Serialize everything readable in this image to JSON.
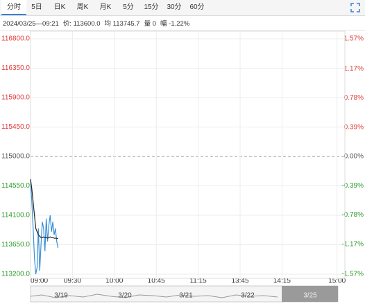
{
  "tabs": [
    "分时",
    "5日",
    "日K",
    "周K",
    "月K",
    "5分",
    "15分",
    "30分",
    "60分"
  ],
  "info": [
    "2024/03/25—09:21",
    "价: 113600.0",
    "均 113745.7",
    "量 0",
    "幅 -1.22%"
  ],
  "chart_data": {
    "type": "line",
    "x": [
      0,
      1,
      2,
      3,
      4,
      5,
      6,
      7,
      8,
      9,
      10,
      11,
      12,
      13,
      14,
      15,
      16,
      17,
      18,
      19,
      20,
      21
    ],
    "series": [
      {
        "name": "价",
        "color": "#3a8fd6",
        "values": [
          114650,
          114300,
          113900,
          113450,
          113200,
          113300,
          113900,
          113250,
          113650,
          114000,
          113900,
          113550,
          114050,
          113700,
          113950,
          114100,
          113850,
          114000,
          113800,
          113900,
          113700,
          113600
        ]
      },
      {
        "name": "均",
        "color": "#222222",
        "values": [
          114650,
          114500,
          114300,
          114100,
          113900,
          113850,
          113800,
          113780,
          113760,
          113760,
          113770,
          113760,
          113760,
          113750,
          113760,
          113770,
          113760,
          113760,
          113750,
          113750,
          113748,
          113745.7
        ]
      }
    ],
    "xlim": [
      0,
      240
    ],
    "xticks": [
      {
        "value": 0,
        "label": "09:00"
      },
      {
        "value": 32,
        "label": "09:30"
      },
      {
        "value": 64,
        "label": "10:00"
      },
      {
        "value": 96,
        "label": "10:45"
      },
      {
        "value": 128,
        "label": "11:15"
      },
      {
        "value": 160,
        "label": "13:45"
      },
      {
        "value": 192,
        "label": "14:15"
      },
      {
        "value": 234,
        "label": "15:00"
      }
    ],
    "ylim": [
      113200,
      116800
    ],
    "yticks": [
      {
        "value": 116800,
        "label": "116800.0"
      },
      {
        "value": 116350,
        "label": "116350.0"
      },
      {
        "value": 115900,
        "label": "115900.0"
      },
      {
        "value": 115450,
        "label": "115450.0"
      },
      {
        "value": 115000,
        "label": "115000.0"
      },
      {
        "value": 114550,
        "label": "114550.0"
      },
      {
        "value": 114100,
        "label": "114100.0"
      },
      {
        "value": 113650,
        "label": "113650.0"
      },
      {
        "value": 113200,
        "label": "113200.0"
      }
    ],
    "y2lim": [
      -1.57,
      1.57
    ],
    "y2ticks": [
      {
        "value": 1.57,
        "label": "1.57%"
      },
      {
        "value": 1.17,
        "label": "1.17%"
      },
      {
        "value": 0.78,
        "label": "0.78%"
      },
      {
        "value": 0.39,
        "label": "0.39%"
      },
      {
        "value": 0,
        "label": "0.00%"
      },
      {
        "value": -0.39,
        "label": "-0.39%"
      },
      {
        "value": -0.78,
        "label": "-0.78%"
      },
      {
        "value": -1.17,
        "label": "-1.17%"
      },
      {
        "value": -1.57,
        "label": "-1.57%"
      }
    ],
    "up_color": "#e03c3c",
    "down_color": "#2a9a2a",
    "flat_color": "#555555",
    "grid": true
  },
  "navigator": [
    "3/19",
    "3/20",
    "3/21",
    "3/22",
    "3/25"
  ]
}
